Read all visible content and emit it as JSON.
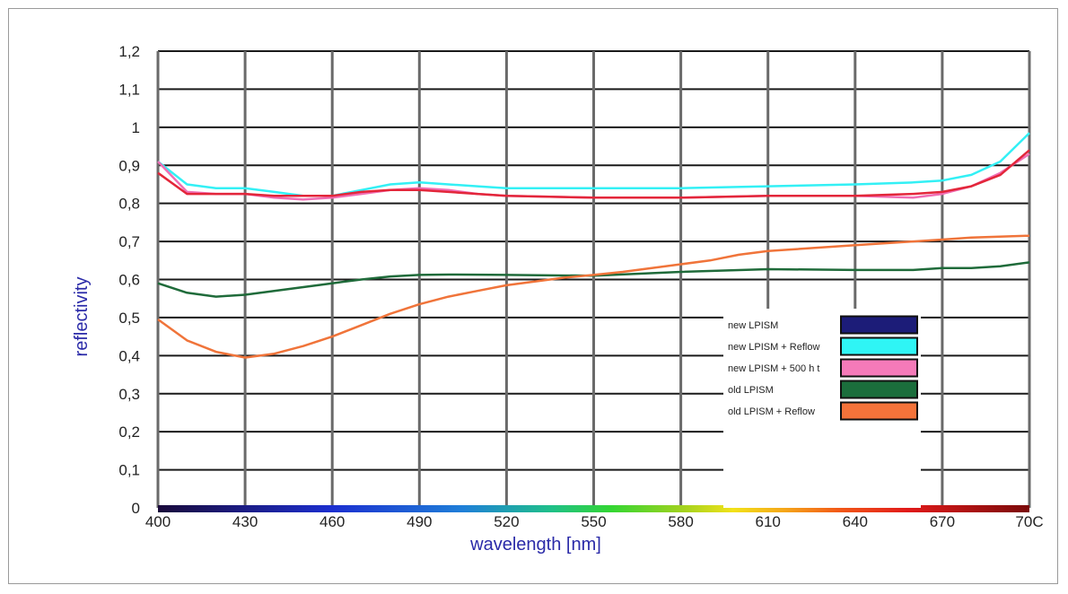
{
  "chart_data": {
    "type": "line",
    "xlabel": "wavelength [nm]",
    "ylabel": "reflectivity",
    "xlim": [
      400,
      700
    ],
    "ylim": [
      0,
      1.2
    ],
    "x_ticks": [
      "400",
      "430",
      "460",
      "490",
      "520",
      "550",
      "580",
      "610",
      "640",
      "670",
      "70C"
    ],
    "x_tick_values": [
      400,
      430,
      460,
      490,
      520,
      550,
      580,
      610,
      640,
      670,
      700
    ],
    "y_ticks": [
      "0",
      "0,1",
      "0,2",
      "0,3",
      "0,4",
      "0,5",
      "0,6",
      "0,7",
      "0,8",
      "0,9",
      "1",
      "1,1",
      "1,2"
    ],
    "y_tick_values": [
      0,
      0.1,
      0.2,
      0.3,
      0.4,
      0.5,
      0.6,
      0.7,
      0.8,
      0.9,
      1.0,
      1.1,
      1.2
    ],
    "grid": true,
    "spectrum_band": true,
    "legend_position": "lower-right",
    "series": [
      {
        "name": "new LPISM",
        "color": "#1a1a7a",
        "swatch_color": "#1c1c78",
        "x": [],
        "y": []
      },
      {
        "name": "new LPISM + Reflow",
        "color": "#33f0f5",
        "swatch_color": "#2ff5f5",
        "x": [
          400,
          410,
          420,
          430,
          440,
          450,
          460,
          470,
          480,
          490,
          500,
          510,
          520,
          530,
          550,
          580,
          610,
          640,
          660,
          670,
          680,
          690,
          700
        ],
        "y": [
          0.91,
          0.85,
          0.84,
          0.84,
          0.83,
          0.82,
          0.82,
          0.835,
          0.85,
          0.855,
          0.85,
          0.845,
          0.84,
          0.84,
          0.84,
          0.84,
          0.845,
          0.85,
          0.855,
          0.86,
          0.875,
          0.91,
          0.985
        ]
      },
      {
        "name": "new LPISM + 500 h t",
        "color": "#f06eb4",
        "swatch_color": "#f57ab9",
        "x": [
          400,
          410,
          420,
          430,
          440,
          450,
          460,
          470,
          480,
          490,
          500,
          510,
          520,
          550,
          580,
          610,
          640,
          660,
          670,
          680,
          690,
          700
        ],
        "y": [
          0.91,
          0.83,
          0.825,
          0.825,
          0.815,
          0.81,
          0.815,
          0.825,
          0.835,
          0.84,
          0.835,
          0.825,
          0.82,
          0.815,
          0.815,
          0.82,
          0.82,
          0.815,
          0.825,
          0.845,
          0.88,
          0.93
        ]
      },
      {
        "name": "old LPISM",
        "color": "#1f6b3a",
        "swatch_color": "#1b6e3c",
        "x": [
          400,
          410,
          420,
          430,
          440,
          450,
          460,
          470,
          480,
          490,
          500,
          520,
          550,
          580,
          610,
          640,
          660,
          670,
          680,
          690,
          700
        ],
        "y": [
          0.59,
          0.565,
          0.555,
          0.56,
          0.57,
          0.58,
          0.59,
          0.6,
          0.608,
          0.612,
          0.613,
          0.612,
          0.61,
          0.62,
          0.627,
          0.625,
          0.625,
          0.63,
          0.63,
          0.635,
          0.645
        ]
      },
      {
        "name": "old LPISM + Reflow",
        "color": "#f0743a",
        "swatch_color": "#f5733a",
        "x": [
          400,
          410,
          420,
          430,
          440,
          450,
          460,
          470,
          480,
          490,
          500,
          510,
          520,
          530,
          540,
          550,
          560,
          570,
          580,
          590,
          600,
          610,
          620,
          640,
          660,
          670,
          680,
          700
        ],
        "y": [
          0.495,
          0.44,
          0.41,
          0.395,
          0.405,
          0.425,
          0.45,
          0.48,
          0.51,
          0.535,
          0.555,
          0.57,
          0.585,
          0.595,
          0.605,
          0.612,
          0.62,
          0.63,
          0.64,
          0.65,
          0.665,
          0.675,
          0.68,
          0.69,
          0.7,
          0.705,
          0.71,
          0.715
        ]
      },
      {
        "name": "",
        "color": "#e3263a",
        "x": [
          400,
          410,
          420,
          430,
          440,
          450,
          460,
          470,
          480,
          490,
          500,
          510,
          520,
          550,
          580,
          610,
          640,
          660,
          670,
          680,
          690,
          700
        ],
        "y": [
          0.88,
          0.825,
          0.825,
          0.825,
          0.82,
          0.82,
          0.82,
          0.83,
          0.835,
          0.835,
          0.83,
          0.825,
          0.82,
          0.815,
          0.815,
          0.82,
          0.82,
          0.825,
          0.83,
          0.845,
          0.875,
          0.94
        ]
      }
    ]
  }
}
